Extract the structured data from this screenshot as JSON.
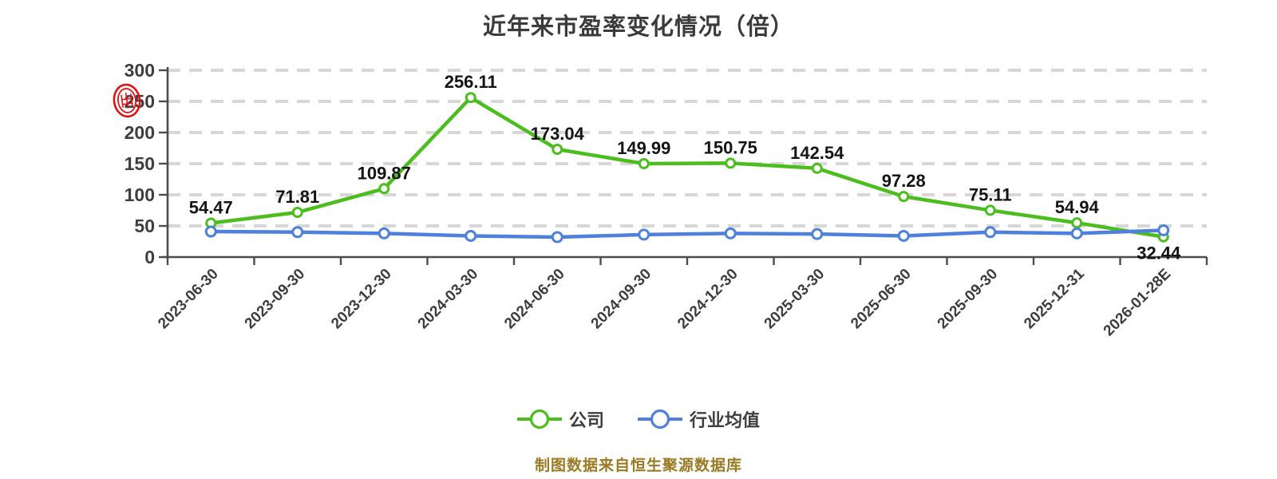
{
  "title": "近年来市盈率变化情况（倍）",
  "footer_note": "制图数据来自恒生聚源数据库",
  "watermark_icon": "red-seal-stamp",
  "legend": {
    "items": [
      {
        "label": "公司",
        "color": "#4BBE1E"
      },
      {
        "label": "行业均值",
        "color": "#4E80DC"
      }
    ]
  },
  "colors": {
    "company_line": "#4BBE1E",
    "industry_line": "#4E80DC",
    "grid_line": "#D7D7D7",
    "axis_line": "#4D4D4D",
    "marker_fill": "#FFFFFF",
    "title_text": "#3B3B3B",
    "data_label_text": "#141414",
    "footer_text": "#9A7A22",
    "seal_red": "#E01212",
    "background": "#FFFFFF"
  },
  "chart_data": {
    "type": "line",
    "title": "近年来市盈率变化情况（倍）",
    "categories": [
      "2023-06-30",
      "2023-09-30",
      "2023-12-30",
      "2024-03-30",
      "2024-06-30",
      "2024-09-30",
      "2024-12-30",
      "2025-03-30",
      "2025-06-30",
      "2025-09-30",
      "2025-12-31",
      "2026-01-28E"
    ],
    "series": [
      {
        "name": "公司",
        "color": "#4BBE1E",
        "values": [
          54.47,
          71.81,
          109.87,
          256.11,
          173.04,
          149.99,
          150.75,
          142.54,
          97.28,
          75.11,
          54.94,
          32.44
        ],
        "point_labels_shown": true
      },
      {
        "name": "行业均值",
        "color": "#4E80DC",
        "values": [
          41,
          40,
          38,
          34,
          32,
          36,
          38,
          37,
          34,
          40,
          38,
          43
        ],
        "point_labels_shown": false,
        "values_estimated_from_pixels": true
      }
    ],
    "xlabel": "",
    "ylabel": "",
    "ylim": [
      0,
      300
    ],
    "yticks": [
      0,
      50,
      100,
      150,
      200,
      250,
      300
    ],
    "grid": "dashed-horizontal",
    "legend_position": "bottom",
    "x_label_rotation_deg": 45
  }
}
